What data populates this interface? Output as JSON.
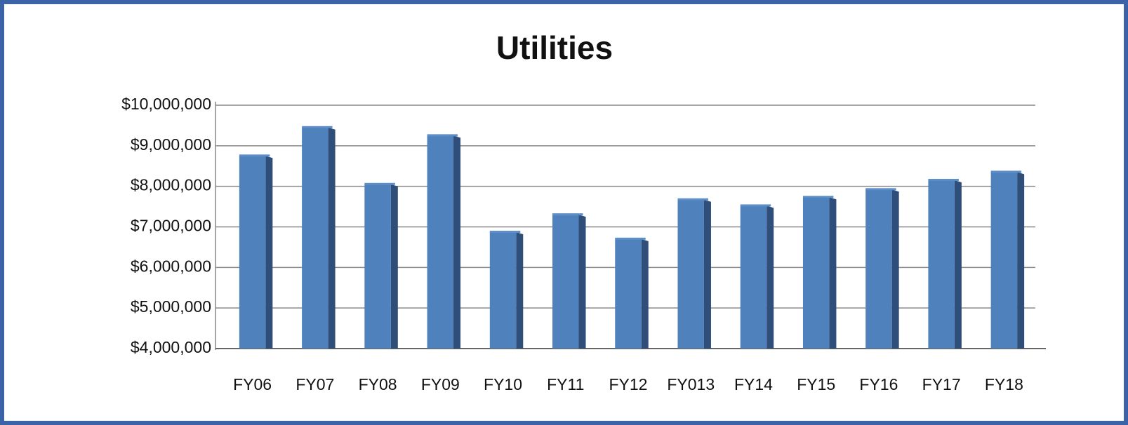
{
  "chart_data": {
    "type": "bar",
    "title": "Utilities",
    "categories": [
      "FY06",
      "FY07",
      "FY08",
      "FY09",
      "FY10",
      "FY11",
      "FY12",
      "FY013",
      "FY14",
      "FY15",
      "FY16",
      "FY17",
      "FY18"
    ],
    "values": [
      8750000,
      9450000,
      8050000,
      9250000,
      6870000,
      7300000,
      6700000,
      7670000,
      7520000,
      7730000,
      7920000,
      8150000,
      8350000
    ],
    "color": "#4f81bd",
    "ylim": [
      4000000,
      10000000
    ],
    "yticks": [
      {
        "value": 4000000,
        "label": "$4,000,000"
      },
      {
        "value": 5000000,
        "label": "$5,000,000"
      },
      {
        "value": 6000000,
        "label": "$6,000,000"
      },
      {
        "value": 7000000,
        "label": "$7,000,000"
      },
      {
        "value": 8000000,
        "label": "$8,000,000"
      },
      {
        "value": 9000000,
        "label": "$9,000,000"
      },
      {
        "value": 10000000,
        "label": "$10,000,000"
      }
    ],
    "grid": true
  }
}
